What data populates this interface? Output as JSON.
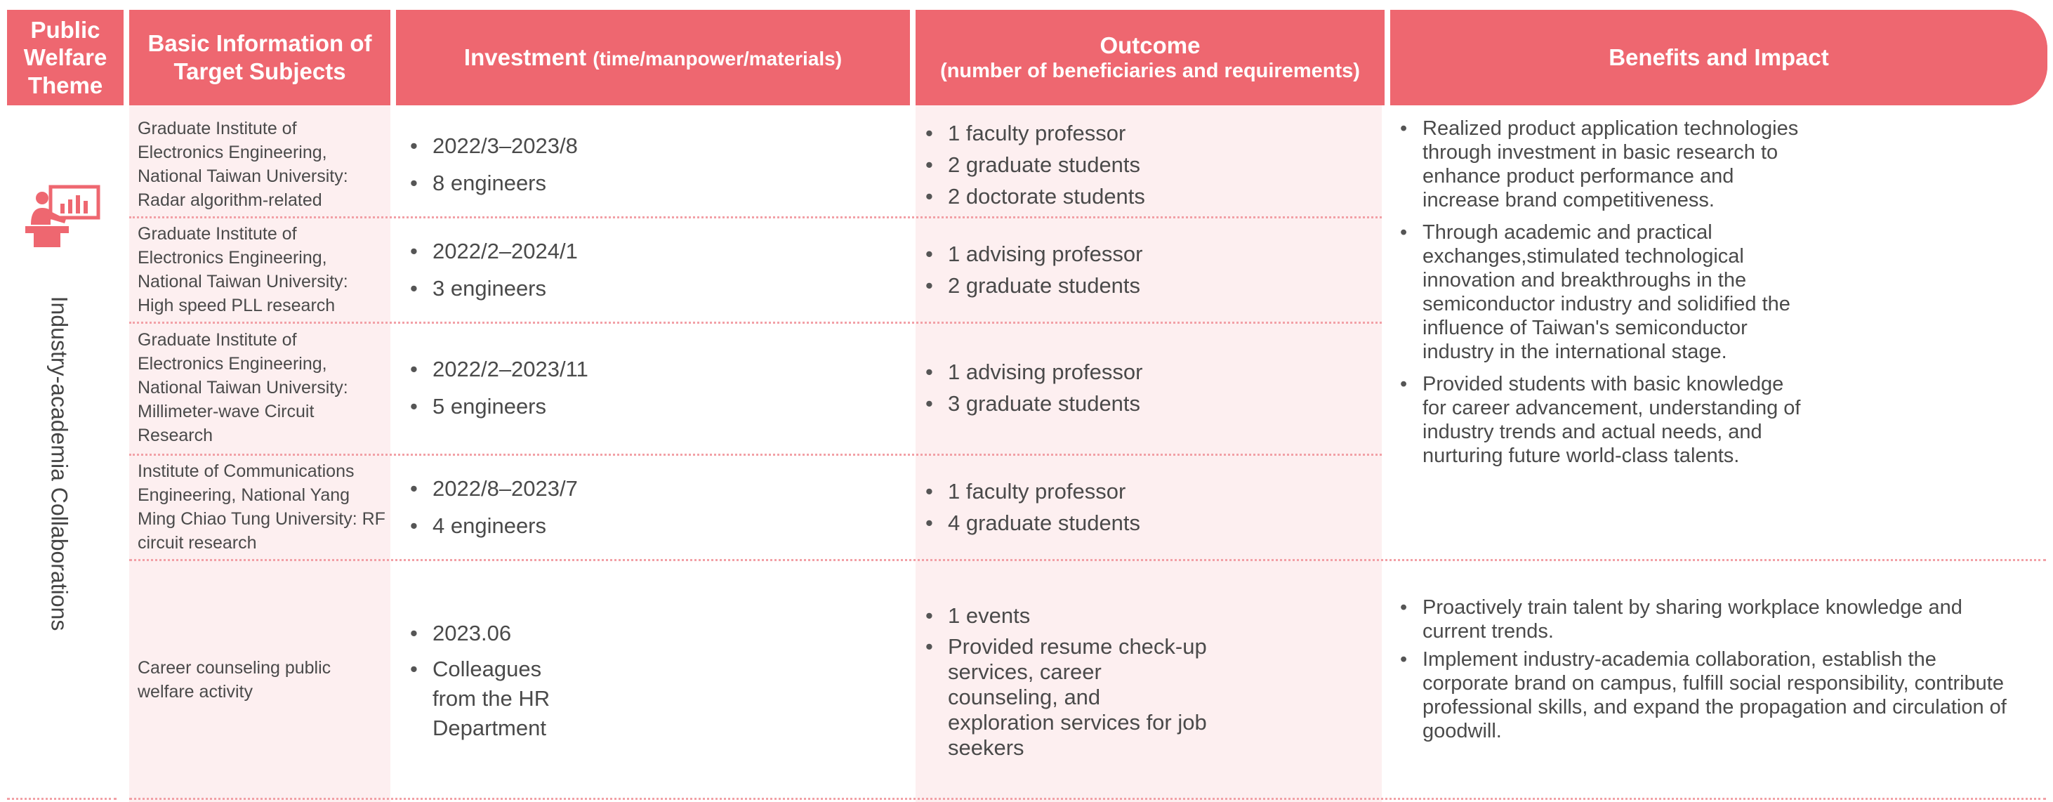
{
  "header": {
    "theme": "Public Welfare Theme",
    "subjects": "Basic Information of Target Subjects",
    "investment_main": "Investment ",
    "investment_sub": "(time/manpower/materials)",
    "outcome_main": "Outcome",
    "outcome_sub": "(number of beneficiaries and requirements)",
    "benefits": "Benefits and Impact"
  },
  "theme_label": "Industry-academia Collaborations",
  "icon": "presentation-board-icon",
  "colors": {
    "accent": "#ee6770",
    "cell_tint": "#fdeff0",
    "divider": "#f2a0a6"
  },
  "rows": [
    {
      "subject": "Graduate Institute of Electronics Engineering, National Taiwan University: Radar algorithm-related",
      "investment": [
        "2022/3–2023/8",
        "8 engineers"
      ],
      "outcome": [
        "1 faculty professor",
        "2 graduate students",
        "2 doctorate students"
      ]
    },
    {
      "subject": "Graduate Institute of Electronics Engineering, National Taiwan University: High speed PLL research",
      "investment": [
        "2022/2–2024/1",
        "3 engineers"
      ],
      "outcome": [
        "1 advising professor",
        "2 graduate students"
      ]
    },
    {
      "subject": "Graduate Institute of Electronics Engineering, National Taiwan University: Millimeter-wave Circuit Research",
      "investment": [
        "2022/2–2023/11",
        "5 engineers"
      ],
      "outcome": [
        "1 advising professor",
        "3 graduate students"
      ]
    },
    {
      "subject": "Institute of Communications Engineering, National Yang Ming Chiao Tung University: RF circuit research",
      "investment": [
        "2022/8–2023/7",
        "4 engineers"
      ],
      "outcome": [
        "1 faculty professor",
        "4 graduate students"
      ]
    },
    {
      "subject": "Career counseling public welfare activity",
      "investment": [
        "2023.06",
        "Colleagues from the HR Department"
      ],
      "outcome": [
        "1 events",
        "Provided resume check-up services, career counseling, and exploration services for job seekers"
      ]
    }
  ],
  "benefits": {
    "research": [
      "Realized product application technologies through investment in basic research to enhance product performance and increase brand competitiveness.",
      "Through academic and practical exchanges,stimulated technological innovation and breakthroughs in the semiconductor industry and solidified the influence of Taiwan's semiconductor industry in the international stage.",
      "Provided students with basic knowledge for career advancement, understanding of industry trends and actual needs, and nurturing future world-class talents."
    ],
    "career": [
      "Proactively train talent by sharing workplace knowledge and current trends.",
      "Implement industry-academia collaboration, establish the corporate brand on campus, fulfill social responsibility, contribute professional skills, and expand the propagation and circulation of goodwill."
    ]
  }
}
